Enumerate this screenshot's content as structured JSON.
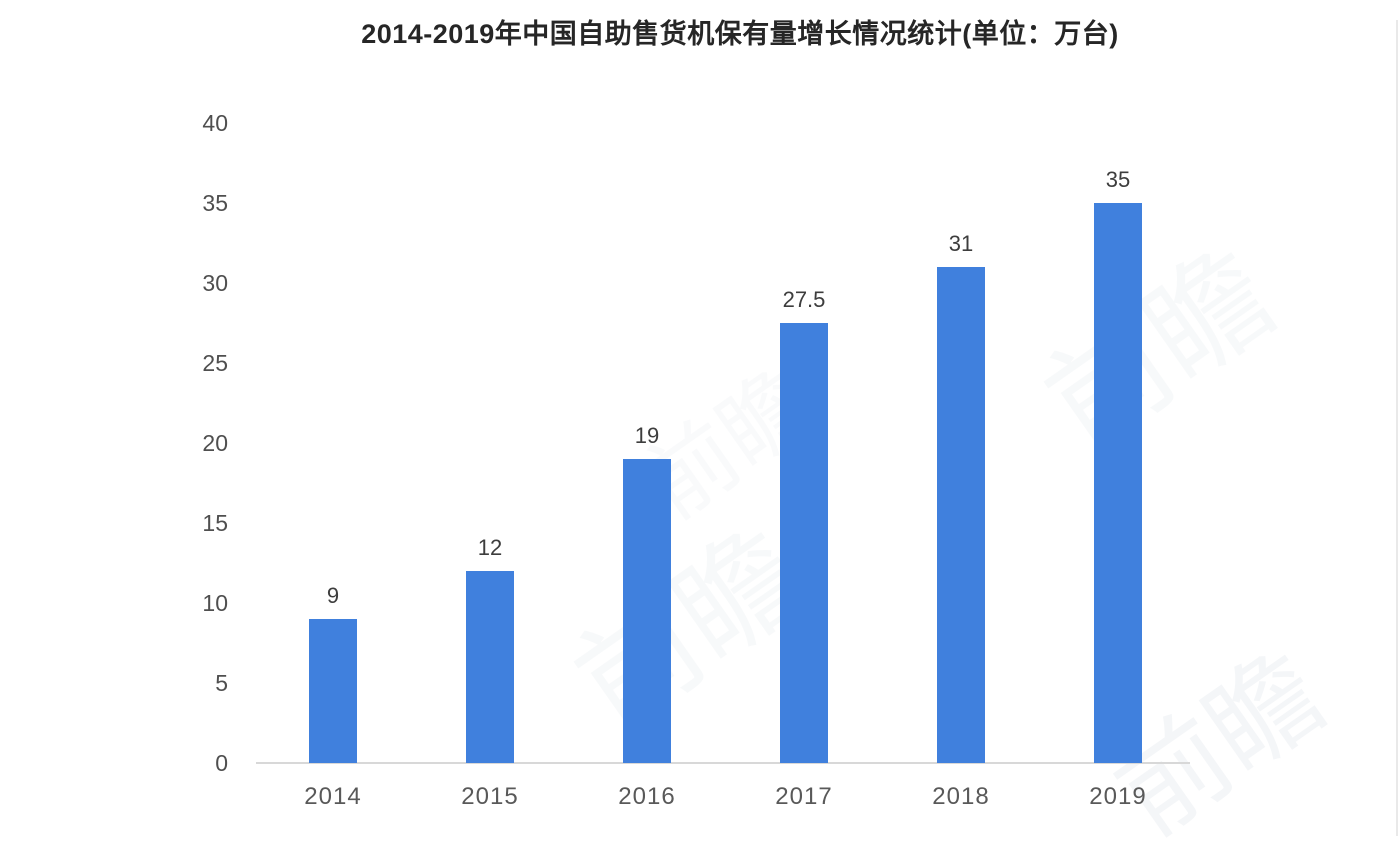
{
  "chart": {
    "title_color": "#262626",
    "bar_color": "#4080dd",
    "axis_line_color": "#d8d8d8",
    "tick_label_color": "#4f4f4f",
    "x_label_color": "#595959",
    "value_label_color": "#3d3d3d",
    "background_color": "#ffffff"
  },
  "chart_data": {
    "type": "bar",
    "title": "2014-2019年中国自助售货机保有量增长情况统计(单位：万台)",
    "categories": [
      "2014",
      "2015",
      "2016",
      "2017",
      "2018",
      "2019"
    ],
    "values": [
      9,
      12,
      19,
      27.5,
      31,
      35
    ],
    "value_labels": [
      "9",
      "12",
      "19",
      "27.5",
      "31",
      "35"
    ],
    "y_ticks": [
      0,
      5,
      10,
      15,
      20,
      25,
      30,
      35,
      40
    ],
    "ylim": [
      0,
      40
    ],
    "xlabel": "",
    "ylabel": "",
    "unit": "万台",
    "grid": false,
    "legend_position": "none"
  },
  "watermark": {
    "text": "前瞻"
  }
}
